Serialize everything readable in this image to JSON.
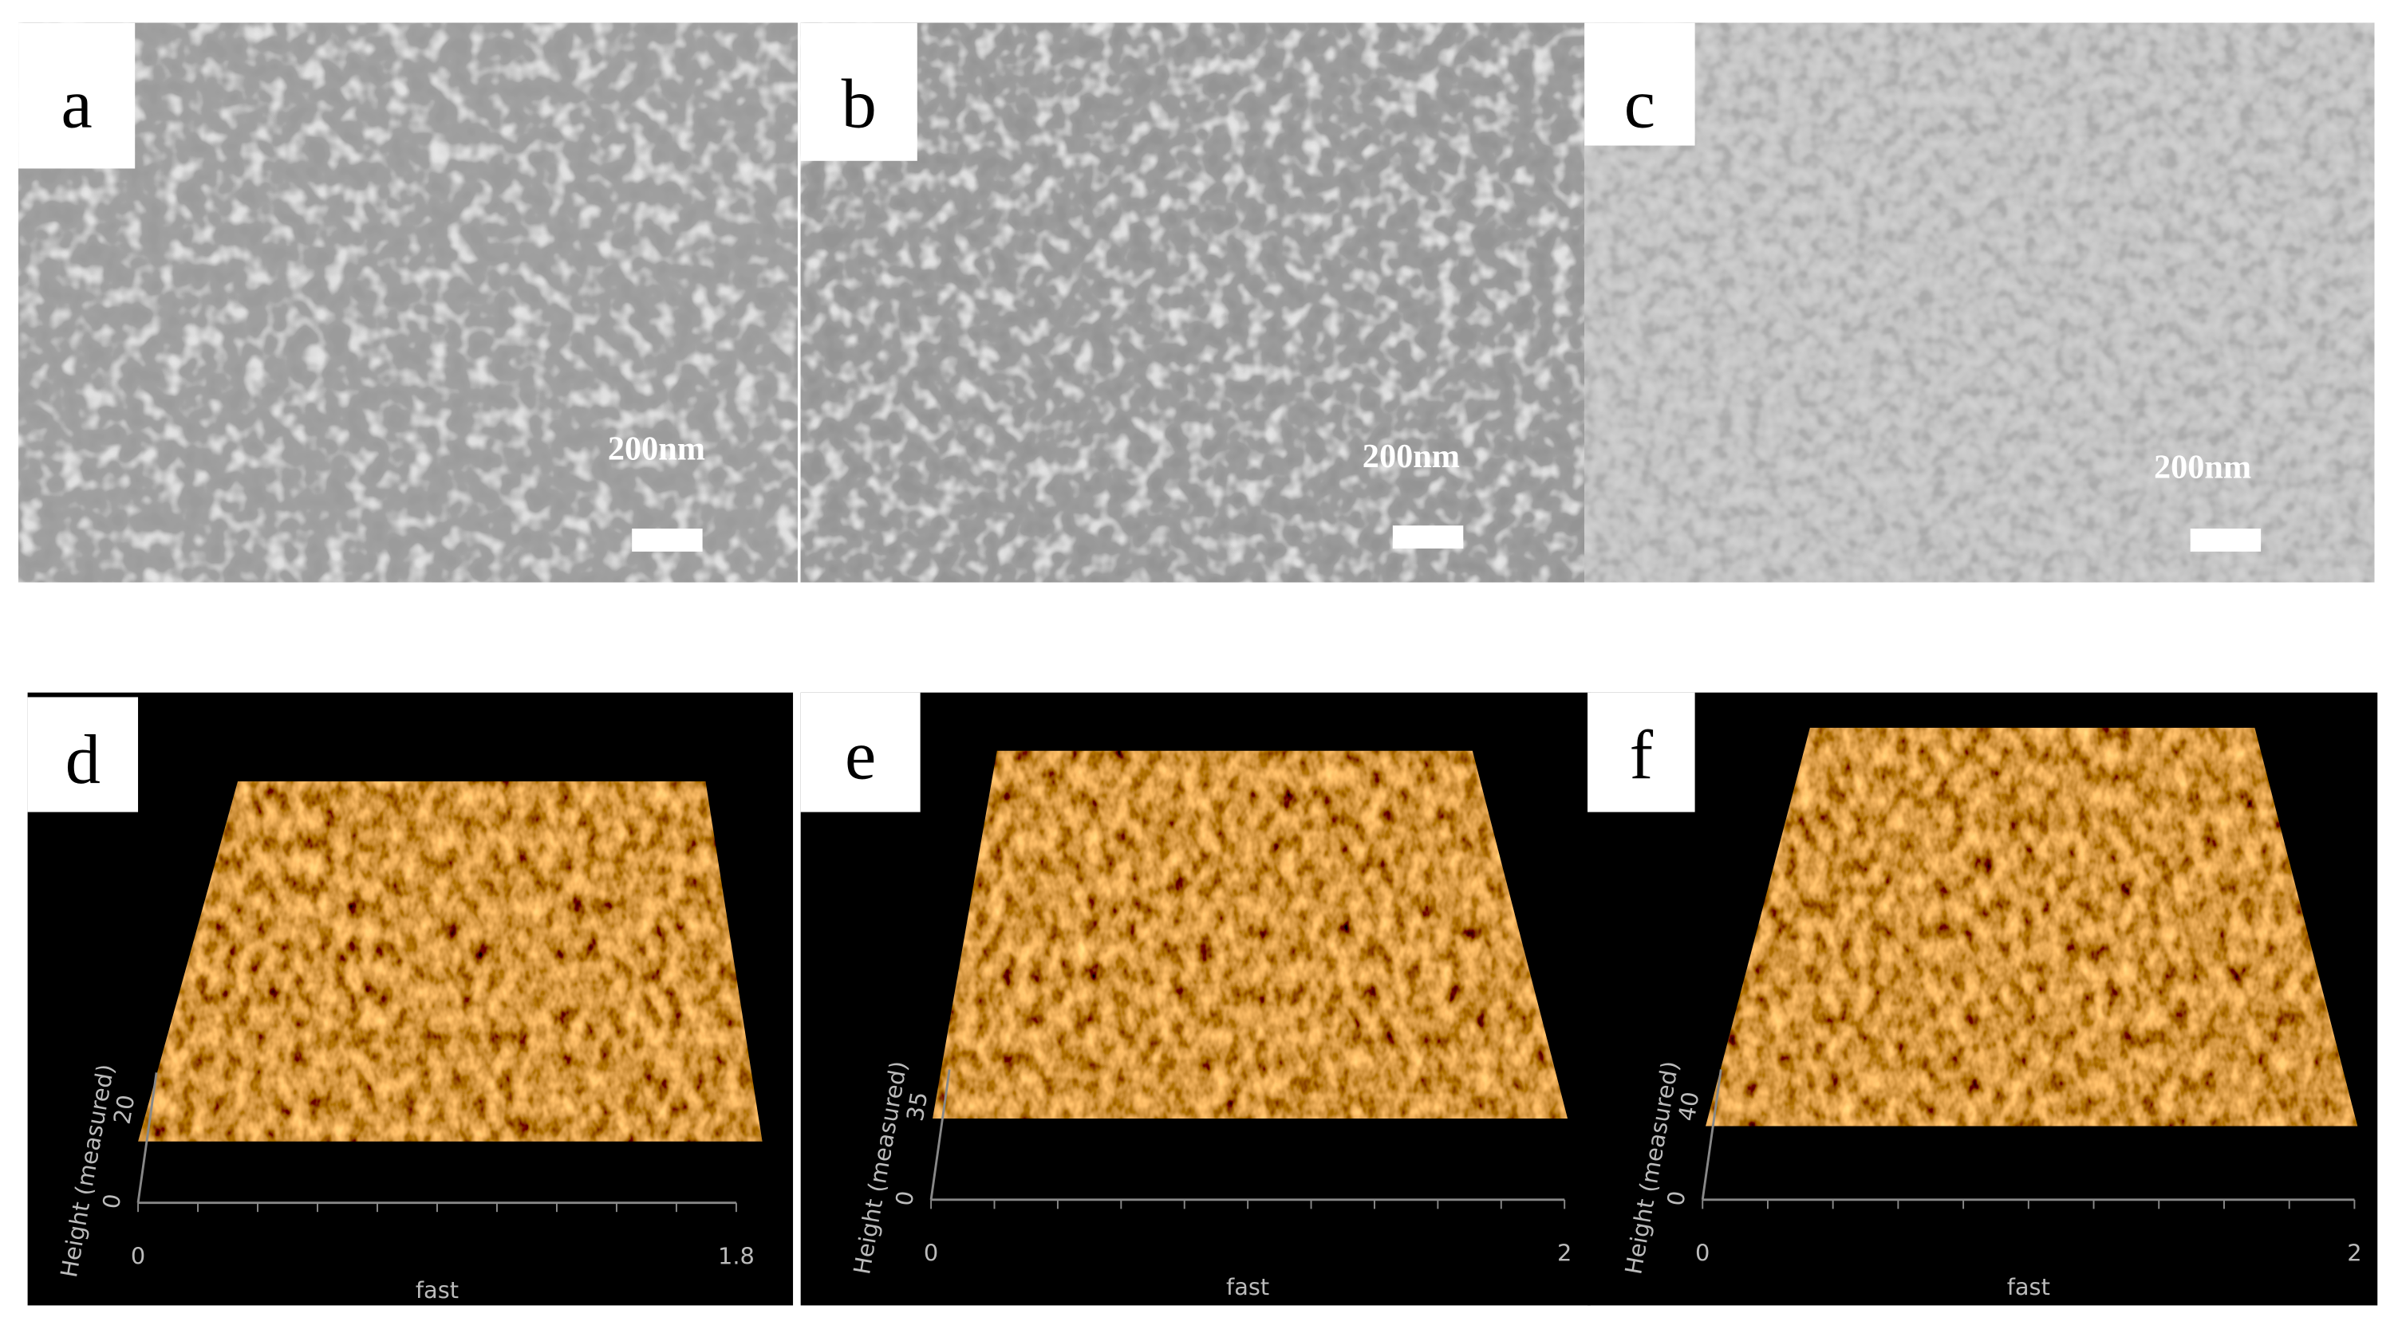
{
  "panels": [
    {
      "label": "a",
      "scale_bar": "200nm"
    },
    {
      "label": "b",
      "scale_bar": "200nm"
    },
    {
      "label": "c",
      "scale_bar": "200nm"
    },
    {
      "label": "d",
      "height_label": "Height (measured)",
      "height_ticks": [
        0,
        20
      ],
      "x_label": "fast",
      "x_ticks": [
        0,
        1.8
      ]
    },
    {
      "label": "e",
      "height_label": "Height (measured)",
      "height_ticks": [
        0,
        35
      ],
      "x_label": "fast",
      "x_ticks": [
        0,
        2
      ]
    },
    {
      "label": "f",
      "height_label": "Height (measured)",
      "height_ticks": [
        0,
        40
      ],
      "x_label": "fast",
      "x_ticks": [
        0,
        2
      ]
    }
  ]
}
